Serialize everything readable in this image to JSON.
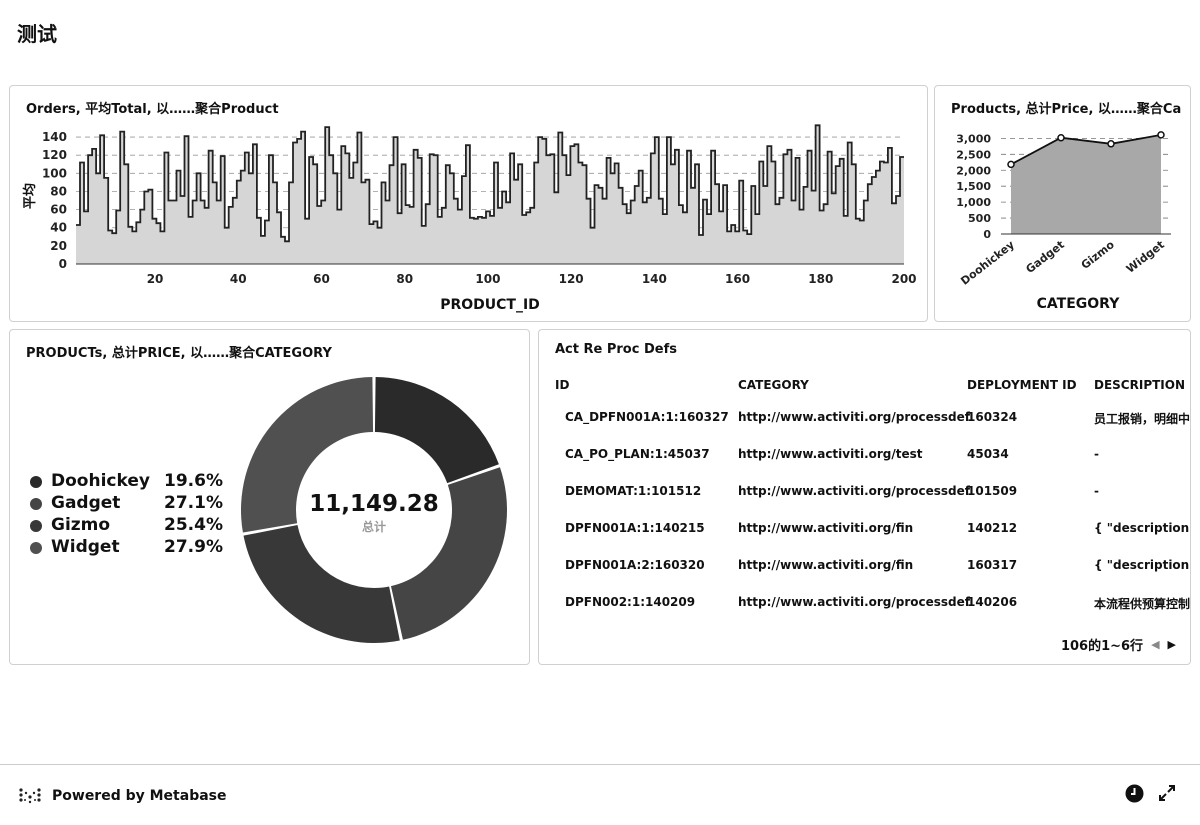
{
  "page": {
    "title": "测试"
  },
  "bar_card": {
    "title": "Orders, 平均Total, 以……聚合Product",
    "chart_data": {
      "type": "area",
      "title": "Orders, 平均Total, 以……聚合Product",
      "xlabel": "PRODUCT_ID",
      "ylabel": "平均",
      "xlim": [
        1,
        200
      ],
      "ylim": [
        0,
        150
      ],
      "yticks": [
        0,
        20,
        40,
        60,
        80,
        100,
        120,
        140
      ],
      "xticks": [
        20,
        40,
        60,
        80,
        100,
        120,
        140,
        160,
        180,
        200
      ],
      "y": [
        43,
        112,
        58,
        120,
        127,
        100,
        142,
        95,
        37,
        34,
        59,
        146,
        110,
        41,
        36,
        46,
        60,
        80,
        82,
        50,
        45,
        36,
        123,
        70,
        70,
        103,
        75,
        141,
        52,
        70,
        100,
        70,
        62,
        125,
        90,
        70,
        119,
        40,
        63,
        73,
        92,
        103,
        123,
        100,
        132,
        51,
        31,
        48,
        120,
        90,
        57,
        30,
        25,
        90,
        134,
        138,
        146,
        50,
        118,
        110,
        64,
        70,
        151,
        120,
        100,
        60,
        130,
        122,
        95,
        112,
        145,
        90,
        93,
        44,
        47,
        40,
        90,
        70,
        109,
        140,
        56,
        110,
        65,
        63,
        126,
        117,
        42,
        66,
        121,
        120,
        52,
        62,
        109,
        100,
        72,
        60,
        97,
        131,
        51,
        50,
        52,
        51,
        58,
        53,
        112,
        62,
        80,
        68,
        122,
        93,
        110,
        54,
        57,
        62,
        112,
        140,
        138,
        120,
        121,
        79,
        145,
        120,
        98,
        130,
        132,
        112,
        109,
        72,
        40,
        87,
        84,
        72,
        117,
        100,
        111,
        84,
        66,
        56,
        70,
        86,
        103,
        68,
        73,
        122,
        140,
        72,
        55,
        140,
        110,
        126,
        65,
        57,
        125,
        84,
        110,
        32,
        71,
        55,
        125,
        88,
        58,
        87,
        36,
        43,
        36,
        92,
        37,
        33,
        86,
        55,
        113,
        86,
        130,
        113,
        66,
        73,
        121,
        126,
        70,
        117,
        60,
        85,
        125,
        81,
        153,
        59,
        66,
        124,
        78,
        108,
        116,
        53,
        134,
        110,
        50,
        48,
        70,
        88,
        96,
        103,
        113,
        112,
        128,
        67,
        75,
        118
      ],
      "grid": true
    }
  },
  "line_card": {
    "title": "Products, 总计Price, 以……聚合Ca",
    "chart_data": {
      "type": "area",
      "title": "Products, 总计Price, 以……聚合Ca",
      "xlabel": "CATEGORY",
      "categories": [
        "Doohickey",
        "Gadget",
        "Gizmo",
        "Widget"
      ],
      "values": [
        2185,
        3020,
        2830,
        3110
      ],
      "ylim": [
        0,
        3200
      ],
      "yticks": [
        "0",
        "500",
        "1,000",
        "1,500",
        "2,000",
        "2,500",
        "3,000"
      ],
      "grid": true
    }
  },
  "donut_card": {
    "title": "PRODUCTs, 总计PRICE, 以……聚合CATEGORY",
    "total": "11,149.28",
    "total_label": "总计",
    "chart_data": {
      "type": "pie",
      "title": "PRODUCTs, 总计PRICE, 以……聚合CATEGORY",
      "legend": "left",
      "slices": [
        {
          "name": "Doohickey",
          "percent": 19.6,
          "label": "19.6%",
          "color": "#2a2a2a"
        },
        {
          "name": "Gadget",
          "percent": 27.1,
          "label": "27.1%",
          "color": "#454545"
        },
        {
          "name": "Gizmo",
          "percent": 25.4,
          "label": "25.4%",
          "color": "#383838"
        },
        {
          "name": "Widget",
          "percent": 27.9,
          "label": "27.9%",
          "color": "#505050"
        }
      ]
    }
  },
  "table_card": {
    "title": "Act Re Proc Defs",
    "columns": [
      "ID",
      "CATEGORY",
      "DEPLOYMENT ID",
      "DESCRIPTION"
    ],
    "rows": [
      [
        "CA_DPFN001A:1:160327",
        "http://www.activiti.org/processdef",
        "160324",
        "员工报销，明细中"
      ],
      [
        "CA_PO_PLAN:1:45037",
        "http://www.activiti.org/test",
        "45034",
        "-"
      ],
      [
        "DEMOMAT:1:101512",
        "http://www.activiti.org/processdef",
        "101509",
        "-"
      ],
      [
        "DPFN001A:1:140215",
        "http://www.activiti.org/fin",
        "140212",
        "{ \"description\": \""
      ],
      [
        "DPFN001A:2:160320",
        "http://www.activiti.org/fin",
        "160317",
        "{ \"description\": \""
      ],
      [
        "DPFN002:1:140209",
        "http://www.activiti.org/processdef",
        "140206",
        "本流程供预算控制"
      ]
    ],
    "pagination": "106的1~6行"
  },
  "footer": {
    "text": "Powered by Metabase"
  }
}
